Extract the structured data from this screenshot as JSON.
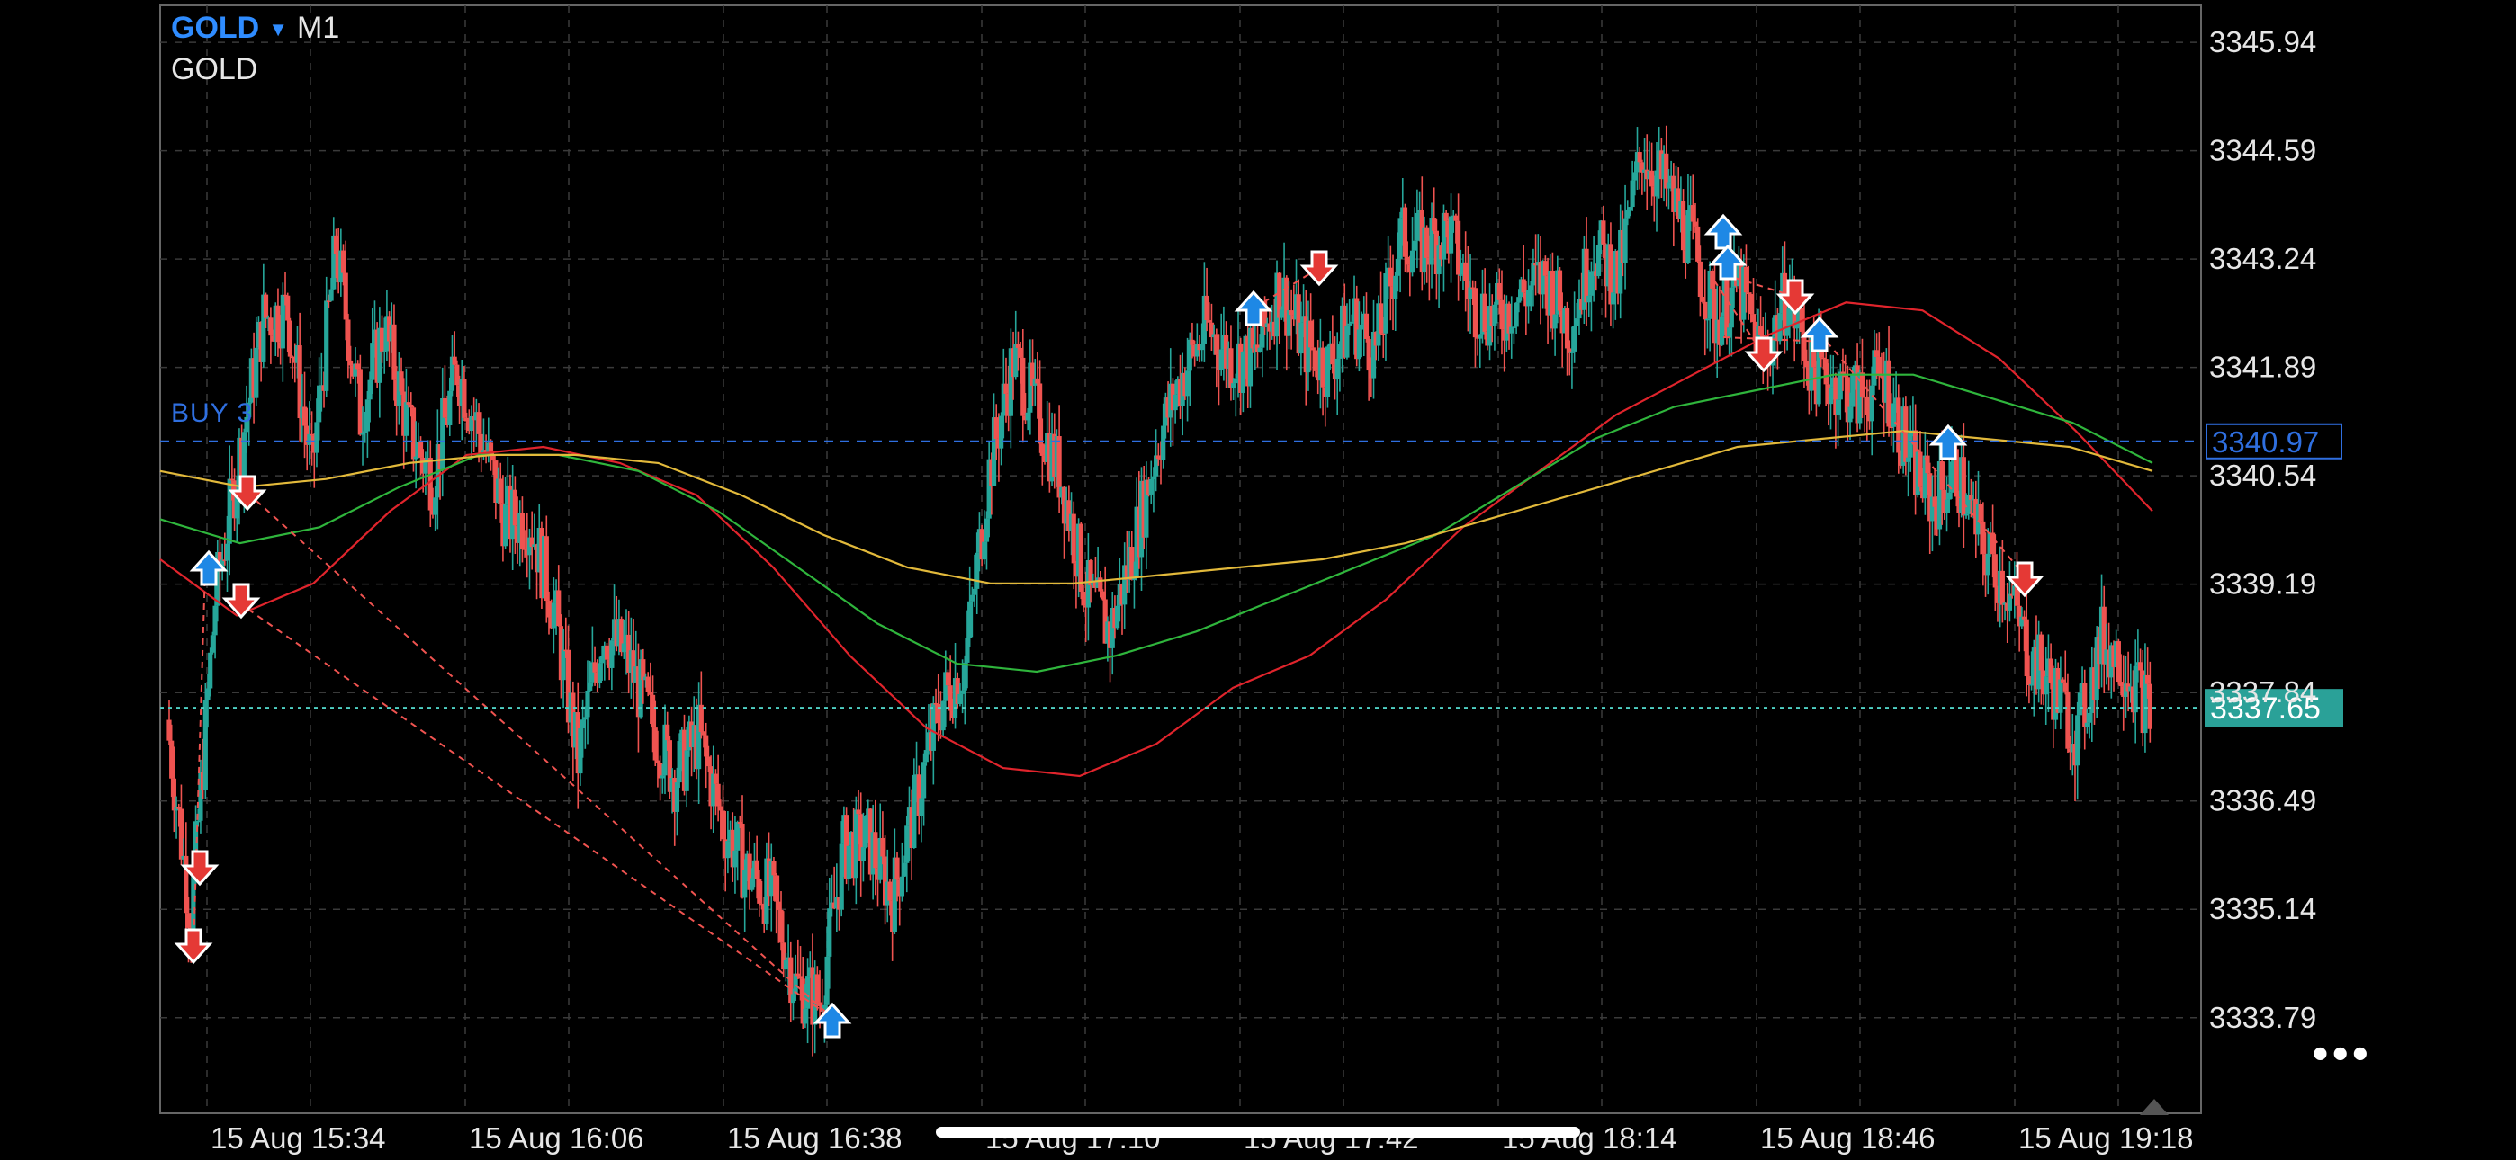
{
  "header": {
    "symbol": "GOLD",
    "dropdown_icon": "caret-down-icon",
    "timeframe": "M1",
    "description": "GOLD"
  },
  "trade_line": {
    "label": "BUY 3",
    "price": "3340.97",
    "color": "#2f6fe0"
  },
  "bid_line": {
    "price": "3337.65",
    "color": "#2aa198"
  },
  "more_icon": "more-dots-icon",
  "colors": {
    "bull": "#26a69a",
    "bear": "#ef5350",
    "ma_red": "#e0242c",
    "ma_green": "#2fb53c",
    "ma_yellow": "#e2b93b",
    "grid": "#3a3a3a",
    "arrow_buy": "#1e88e5",
    "arrow_sell": "#e53935"
  },
  "chart_data": {
    "type": "candlestick",
    "y_ticks": [
      "3345.94",
      "3344.59",
      "3343.24",
      "3341.89",
      "3340.54",
      "3339.19",
      "3337.84",
      "3336.49",
      "3335.14",
      "3333.79"
    ],
    "x_ticks": [
      "15 Aug 15:34",
      "15 Aug 16:06",
      "15 Aug 16:38",
      "15 Aug 17:10",
      "15 Aug 17:42",
      "15 Aug 18:14",
      "15 Aug 18:46",
      "15 Aug 19:18"
    ],
    "ylim": [
      3332.6,
      3346.4
    ],
    "grid": true,
    "close_path": [
      3337.5,
      3335.0,
      3339.0,
      3340.8,
      3342.5,
      3342.6,
      3340.6,
      3343.4,
      3341.3,
      3342.4,
      3341.1,
      3340.5,
      3341.9,
      3341.0,
      3340.0,
      3340.0,
      3338.9,
      3337.0,
      3338.6,
      3338.3,
      3337.5,
      3336.8,
      3337.3,
      3336.2,
      3335.6,
      3335.3,
      3334.2,
      3334.0,
      3335.9,
      3336.0,
      3335.3,
      3336.5,
      3337.7,
      3338.2,
      3340.6,
      3342.0,
      3341.3,
      3340.5,
      3339.1,
      3338.6,
      3339.7,
      3341.0,
      3341.8,
      3342.4,
      3342.0,
      3342.0,
      3342.9,
      3342.2,
      3341.9,
      3342.5,
      3342.1,
      3343.5,
      3343.4,
      3343.6,
      3342.7,
      3342.5,
      3342.8,
      3343.0,
      3342.4,
      3343.4,
      3343.0,
      3344.6,
      3344.1,
      3343.5,
      3342.5,
      3342.9,
      3342.0,
      3342.8,
      3341.9,
      3341.7,
      3341.5,
      3341.8,
      3340.8,
      3340.2,
      3340.6,
      3339.7,
      3339.2,
      3338.3,
      3337.9,
      3337.3,
      3338.5,
      3338.2,
      3337.6
    ],
    "moving_averages": [
      {
        "color": "#e0242c",
        "values": [
          3339.5,
          3338.8,
          3339.2,
          3340.1,
          3340.8,
          3340.9,
          3340.7,
          3340.3,
          3339.4,
          3338.3,
          3337.4,
          3336.9,
          3336.8,
          3337.2,
          3337.9,
          3338.3,
          3339.0,
          3339.9,
          3340.6,
          3341.3,
          3341.8,
          3342.3,
          3342.7,
          3342.6,
          3342.0,
          3341.1,
          3340.1
        ]
      },
      {
        "color": "#2fb53c",
        "values": [
          3340.0,
          3339.7,
          3339.9,
          3340.4,
          3340.8,
          3340.8,
          3340.6,
          3340.1,
          3339.4,
          3338.7,
          3338.2,
          3338.1,
          3338.3,
          3338.6,
          3339.0,
          3339.4,
          3339.8,
          3340.4,
          3341.0,
          3341.4,
          3341.6,
          3341.8,
          3341.8,
          3341.5,
          3341.2,
          3340.7
        ]
      },
      {
        "color": "#e2b93b",
        "values": [
          3340.6,
          3340.4,
          3340.5,
          3340.7,
          3340.8,
          3340.8,
          3340.7,
          3340.3,
          3339.8,
          3339.4,
          3339.2,
          3339.2,
          3339.3,
          3339.4,
          3339.5,
          3339.7,
          3340.0,
          3340.3,
          3340.6,
          3340.9,
          3341.0,
          3341.1,
          3341.0,
          3340.9,
          3340.6
        ]
      }
    ]
  }
}
